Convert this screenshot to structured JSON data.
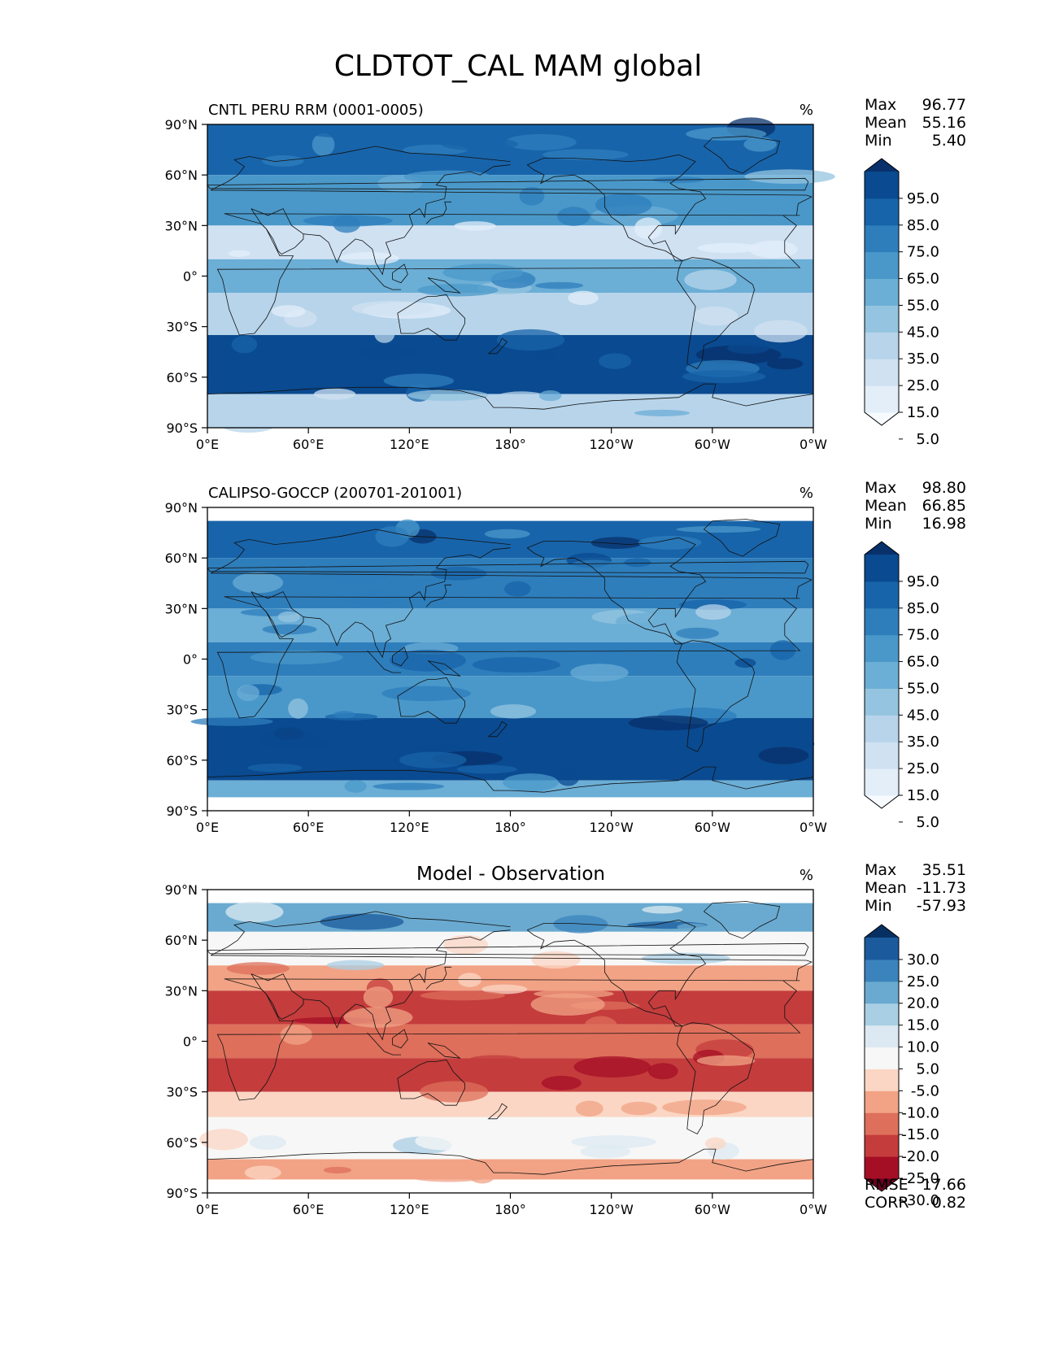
{
  "title": "CLDTOT_CAL MAM global",
  "chart_data": [
    {
      "type": "heatmap",
      "title_left": "CNTL PERU RRM (0001-0005)",
      "units": "%",
      "stats": [
        {
          "label": "Max",
          "value": "96.77"
        },
        {
          "label": "Mean",
          "value": "55.16"
        },
        {
          "label": "Min",
          "value": "5.40"
        }
      ],
      "colorbar_ticks": [
        "95.0",
        "85.0",
        "75.0",
        "65.0",
        "55.0",
        "45.0",
        "35.0",
        "25.0",
        "15.0",
        "5.0"
      ],
      "colorbar_colors": [
        "#f7fbff",
        "#e3eef9",
        "#d0e1f2",
        "#b7d4ea",
        "#94c4df",
        "#6baed6",
        "#4a98c9",
        "#2e7ebc",
        "#1864aa",
        "#0a4a90",
        "#08306b"
      ],
      "lat_ticks": [
        "90°N",
        "60°N",
        "30°N",
        "0°",
        "30°S",
        "60°S",
        "90°S"
      ],
      "lon_ticks": [
        "0°E",
        "60°E",
        "120°E",
        "180°",
        "120°W",
        "60°W",
        "0°W"
      ],
      "field_bands": [
        {
          "lat": [
            60,
            90
          ],
          "level": 8
        },
        {
          "lat": [
            30,
            60
          ],
          "level": 6
        },
        {
          "lat": [
            10,
            30
          ],
          "level": 2
        },
        {
          "lat": [
            -10,
            10
          ],
          "level": 5
        },
        {
          "lat": [
            -35,
            -10
          ],
          "level": 3
        },
        {
          "lat": [
            -70,
            -35
          ],
          "level": 9
        },
        {
          "lat": [
            -90,
            -70
          ],
          "level": 3
        }
      ]
    },
    {
      "type": "heatmap",
      "title_left": "CALIPSO-GOCCP (200701-201001)",
      "units": "%",
      "stats": [
        {
          "label": "Max",
          "value": "98.80"
        },
        {
          "label": "Mean",
          "value": "66.85"
        },
        {
          "label": "Min",
          "value": "16.98"
        }
      ],
      "colorbar_ticks": [
        "95.0",
        "85.0",
        "75.0",
        "65.0",
        "55.0",
        "45.0",
        "35.0",
        "25.0",
        "15.0",
        "5.0"
      ],
      "colorbar_colors": [
        "#f7fbff",
        "#e3eef9",
        "#d0e1f2",
        "#b7d4ea",
        "#94c4df",
        "#6baed6",
        "#4a98c9",
        "#2e7ebc",
        "#1864aa",
        "#0a4a90",
        "#08306b"
      ],
      "lat_ticks": [
        "90°N",
        "60°N",
        "30°N",
        "0°",
        "30°S",
        "60°S",
        "90°S"
      ],
      "lon_ticks": [
        "0°E",
        "60°E",
        "120°E",
        "180°",
        "120°W",
        "60°W",
        "0°W"
      ],
      "field_bands": [
        {
          "lat": [
            60,
            82
          ],
          "level": 8
        },
        {
          "lat": [
            30,
            60
          ],
          "level": 7
        },
        {
          "lat": [
            10,
            30
          ],
          "level": 5
        },
        {
          "lat": [
            -10,
            10
          ],
          "level": 7
        },
        {
          "lat": [
            -35,
            -10
          ],
          "level": 6
        },
        {
          "lat": [
            -72,
            -35
          ],
          "level": 9
        },
        {
          "lat": [
            -82,
            -72
          ],
          "level": 5
        }
      ]
    },
    {
      "type": "heatmap",
      "title_center": "Model - Observation",
      "units": "%",
      "stats": [
        {
          "label": "Max",
          "value": "35.51"
        },
        {
          "label": "Mean",
          "value": "-11.73"
        },
        {
          "label": "Min",
          "value": "-57.93"
        }
      ],
      "colorbar_ticks": [
        "30.0",
        "25.0",
        "20.0",
        "15.0",
        "10.0",
        "5.0",
        "-5.0",
        "-10.0",
        "-15.0",
        "-20.0",
        "-25.0",
        "-30.0"
      ],
      "colorbar_colors": [
        "#67001f",
        "#a50f26",
        "#c43c3c",
        "#de6f5b",
        "#f2a385",
        "#fbd6c4",
        "#f7f7f7",
        "#dce9f2",
        "#a9cfe4",
        "#6aaad0",
        "#3b83bd",
        "#1b5b9d",
        "#053061"
      ],
      "lat_ticks": [
        "90°N",
        "60°N",
        "30°N",
        "0°",
        "30°S",
        "60°S",
        "90°S"
      ],
      "lon_ticks": [
        "0°E",
        "60°E",
        "120°E",
        "180°",
        "120°W",
        "60°W",
        "0°W"
      ],
      "field_bands": [
        {
          "lat": [
            65,
            82
          ],
          "level": 9
        },
        {
          "lat": [
            45,
            65
          ],
          "level": 6
        },
        {
          "lat": [
            30,
            45
          ],
          "level": 4
        },
        {
          "lat": [
            10,
            30
          ],
          "level": 2
        },
        {
          "lat": [
            -10,
            10
          ],
          "level": 3
        },
        {
          "lat": [
            -30,
            -10
          ],
          "level": 2
        },
        {
          "lat": [
            -45,
            -30
          ],
          "level": 5
        },
        {
          "lat": [
            -70,
            -45
          ],
          "level": 6
        },
        {
          "lat": [
            -82,
            -70
          ],
          "level": 4
        }
      ],
      "rmse_label": "RMSE",
      "rmse_value": "17.66",
      "corr_label": "CORR",
      "corr_value": "0.82"
    }
  ]
}
